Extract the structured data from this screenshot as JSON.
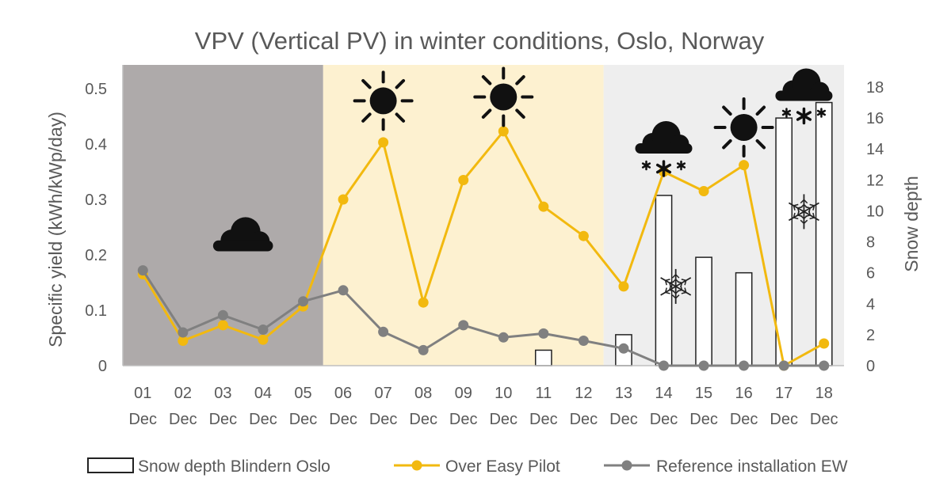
{
  "chart_data": {
    "type": "bar+line",
    "title": "VPV (Vertical PV) in winter conditions, Oslo, Norway",
    "ylabel_left": "Specific yield (kWh/kWp/day)",
    "ylabel_right": "Snow depth",
    "ylim_left": [
      0,
      0.5
    ],
    "ylim_right": [
      0,
      18
    ],
    "yticks_left": [
      {
        "value": 0,
        "label": "0"
      },
      {
        "value": 0.1,
        "label": "0.1"
      },
      {
        "value": 0.2,
        "label": "0.2"
      },
      {
        "value": 0.3,
        "label": "0.3"
      },
      {
        "value": 0.4,
        "label": "0.4"
      },
      {
        "value": 0.5,
        "label": "0.5"
      }
    ],
    "yticks_right": [
      {
        "value": 0,
        "label": "0"
      },
      {
        "value": 2,
        "label": "2"
      },
      {
        "value": 4,
        "label": "4"
      },
      {
        "value": 6,
        "label": "6"
      },
      {
        "value": 8,
        "label": "8"
      },
      {
        "value": 10,
        "label": "10"
      },
      {
        "value": 12,
        "label": "12"
      },
      {
        "value": 14,
        "label": "14"
      },
      {
        "value": 16,
        "label": "16"
      },
      {
        "value": 18,
        "label": "18"
      }
    ],
    "categories": [
      {
        "day": "01",
        "month": "Dec"
      },
      {
        "day": "02",
        "month": "Dec"
      },
      {
        "day": "03",
        "month": "Dec"
      },
      {
        "day": "04",
        "month": "Dec"
      },
      {
        "day": "05",
        "month": "Dec"
      },
      {
        "day": "06",
        "month": "Dec"
      },
      {
        "day": "07",
        "month": "Dec"
      },
      {
        "day": "08",
        "month": "Dec"
      },
      {
        "day": "09",
        "month": "Dec"
      },
      {
        "day": "10",
        "month": "Dec"
      },
      {
        "day": "11",
        "month": "Dec"
      },
      {
        "day": "12",
        "month": "Dec"
      },
      {
        "day": "13",
        "month": "Dec"
      },
      {
        "day": "14",
        "month": "Dec"
      },
      {
        "day": "15",
        "month": "Dec"
      },
      {
        "day": "16",
        "month": "Dec"
      },
      {
        "day": "17",
        "month": "Dec"
      },
      {
        "day": "18",
        "month": "Dec"
      }
    ],
    "series": [
      {
        "name": "Snow depth Blindern Oslo",
        "kind": "bar",
        "axis": "right",
        "color": "#ffffff",
        "stroke": "#222222",
        "values": [
          0,
          0,
          0,
          0,
          0,
          0,
          0,
          0,
          0,
          0,
          1,
          0,
          2,
          11,
          7,
          6,
          16,
          17
        ]
      },
      {
        "name": "Over Easy Pilot",
        "kind": "line",
        "axis": "left",
        "color": "#f2b90f",
        "values": [
          0.165,
          0.045,
          0.073,
          0.047,
          0.107,
          0.3,
          0.403,
          0.114,
          0.335,
          0.423,
          0.287,
          0.234,
          0.143,
          0.35,
          0.315,
          0.362,
          0,
          0.04
        ]
      },
      {
        "name": "Reference installation EW",
        "kind": "line",
        "axis": "left",
        "color": "#808080",
        "values": [
          0.172,
          0.06,
          0.091,
          0.065,
          0.116,
          0.136,
          0.061,
          0.028,
          0.073,
          0.051,
          0.058,
          0.045,
          0.031,
          0,
          0,
          0,
          0,
          0
        ]
      }
    ],
    "background_zones": [
      {
        "from": 1,
        "to": 5,
        "color": "#aeaaaa"
      },
      {
        "from": 6,
        "to": 12,
        "color": "#fdf1d0"
      },
      {
        "from": 13,
        "to": 18,
        "color": "#eeeeee"
      }
    ],
    "weather_icons": [
      {
        "icon": "cloud-icon",
        "at_category": 3.5,
        "at_yield": 0.235
      },
      {
        "icon": "sun-icon",
        "at_category": 7,
        "at_yield": 0.478
      },
      {
        "icon": "sun-icon",
        "at_category": 10,
        "at_yield": 0.485
      },
      {
        "icon": "snow-cloud-icon",
        "at_category": 14,
        "at_yield": 0.41
      },
      {
        "icon": "sun-icon",
        "at_category": 16,
        "at_yield": 0.43
      },
      {
        "icon": "snow-cloud-icon",
        "at_category": 17.5,
        "at_yield": 0.505
      },
      {
        "icon": "snowflake-icon",
        "at_category": 14.3,
        "at_yield": 0.143
      },
      {
        "icon": "snowflake-icon",
        "at_category": 17.5,
        "at_yield": 0.278
      }
    ],
    "legend_position": "bottom",
    "grid": false
  }
}
